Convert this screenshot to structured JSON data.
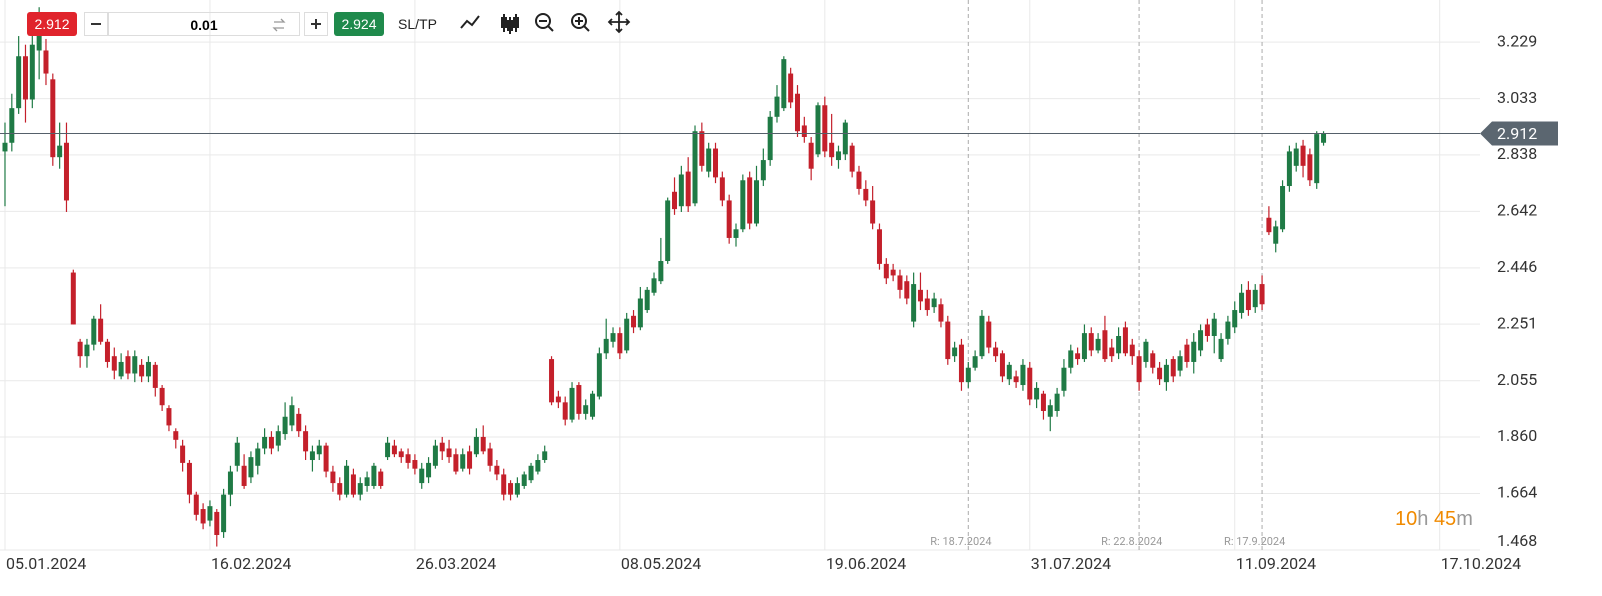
{
  "toolbar": {
    "bid": "2.912",
    "lot": "0.01",
    "ask": "2.924",
    "sl_tp": "SL/TP"
  },
  "countdown": [
    "10",
    "h",
    "45",
    "m"
  ],
  "chart_data": {
    "type": "candlestick",
    "up_color": "#1f7a45",
    "down_color": "#c4202b",
    "grid": true,
    "current_price": 2.912,
    "xlim": [
      -0.73,
      215.9
    ],
    "ylim": [
      1.468,
      3.375
    ],
    "xticks": [
      {
        "value": 0,
        "label": "05.01.2024"
      },
      {
        "value": 30,
        "label": "16.02.2024"
      },
      {
        "value": 60,
        "label": "26.03.2024"
      },
      {
        "value": 90,
        "label": "08.05.2024"
      },
      {
        "value": 120,
        "label": "19.06.2024"
      },
      {
        "value": 150,
        "label": "31.07.2024"
      },
      {
        "value": 180,
        "label": "11.09.2024"
      },
      {
        "value": 210,
        "label": "17.10.2024"
      }
    ],
    "yticks": [
      3.229,
      3.033,
      2.838,
      2.642,
      2.446,
      2.251,
      2.055,
      {
        "value": 1.86,
        "label": "1.860"
      },
      1.664,
      1.468
    ],
    "annotations": [
      {
        "label": "R: 18.7.2024",
        "x": 141
      },
      {
        "label": "R: 22.8.2024",
        "x": 166
      },
      {
        "label": "R: 17.9.2024",
        "x": 184
      }
    ],
    "open": [
      2.85,
      2.88,
      3.0,
      3.18,
      3.03,
      3.2,
      3.2,
      3.1,
      2.83,
      2.88,
      2.43,
      2.19,
      2.14,
      2.18,
      2.27,
      2.19,
      2.14,
      2.07,
      2.14,
      2.08,
      2.11,
      2.07,
      2.11,
      2.03,
      1.96,
      1.88,
      1.83,
      1.77,
      1.66,
      1.61,
      1.57,
      1.6,
      1.53,
      1.66,
      1.76,
      1.76,
      1.72,
      1.76,
      1.82,
      1.86,
      1.83,
      1.87,
      1.9,
      1.94,
      1.88,
      1.78,
      1.8,
      1.83,
      1.74,
      1.7,
      1.66,
      1.73,
      1.66,
      1.69,
      1.69,
      1.74,
      1.79,
      1.83,
      1.81,
      1.8,
      1.78,
      1.7,
      1.72,
      1.76,
      1.84,
      1.82,
      1.8,
      1.75,
      1.81,
      1.8,
      1.86,
      1.82,
      1.76,
      1.73,
      1.7,
      1.66,
      1.69,
      1.71,
      1.74,
      1.78,
      2.13,
      2.0,
      1.98,
      1.92,
      2.04,
      1.94,
      1.93,
      2.0,
      2.15,
      2.19,
      2.22,
      2.16,
      2.28,
      2.24,
      2.3,
      2.36,
      2.4,
      2.47,
      2.71,
      2.66,
      2.78,
      2.67,
      2.92,
      2.78,
      2.86,
      2.76,
      2.68,
      2.55,
      2.58,
      2.76,
      2.6,
      2.75,
      2.82,
      2.97,
      3.0,
      3.12,
      3.05,
      2.94,
      2.88,
      2.84,
      3.01,
      2.88,
      2.82,
      2.84,
      2.87,
      2.78,
      2.72,
      2.68,
      2.58,
      2.46,
      2.44,
      2.42,
      2.4,
      2.26,
      2.37,
      2.34,
      2.31,
      2.32,
      2.26,
      2.14,
      2.18,
      2.05,
      2.1,
      2.14,
      2.26,
      2.17,
      2.15,
      2.06,
      2.07,
      2.04,
      2.1,
      1.99,
      2.01,
      1.93,
      1.95,
      2.02,
      2.1,
      2.15,
      2.13,
      2.22,
      2.16,
      2.23,
      2.17,
      2.15,
      2.24,
      2.18,
      2.14,
      2.12,
      2.15,
      2.1,
      2.05,
      2.13,
      2.09,
      2.18,
      2.12,
      2.16,
      2.25,
      2.21,
      2.13,
      2.2,
      2.24,
      2.29,
      2.37,
      2.31,
      2.39,
      2.62,
      2.53,
      2.58,
      2.73,
      2.8,
      2.87,
      2.84,
      2.74,
      2.88
    ],
    "high": [
      2.95,
      3.05,
      3.25,
      3.22,
      3.3,
      3.35,
      3.24,
      3.12,
      2.95,
      2.95,
      2.44,
      2.2,
      2.2,
      2.28,
      2.32,
      2.2,
      2.17,
      2.15,
      2.16,
      2.16,
      2.13,
      2.14,
      2.12,
      2.04,
      1.97,
      1.89,
      1.85,
      1.78,
      1.67,
      1.63,
      1.64,
      1.61,
      1.68,
      1.76,
      1.86,
      1.8,
      1.81,
      1.84,
      1.89,
      1.88,
      1.9,
      1.98,
      2.0,
      1.96,
      1.9,
      1.83,
      1.85,
      1.84,
      1.76,
      1.72,
      1.78,
      1.75,
      1.72,
      1.74,
      1.77,
      1.75,
      1.86,
      1.85,
      1.82,
      1.82,
      1.8,
      1.77,
      1.79,
      1.85,
      1.86,
      1.85,
      1.82,
      1.82,
      1.83,
      1.89,
      1.9,
      1.84,
      1.78,
      1.75,
      1.71,
      1.72,
      1.74,
      1.77,
      1.8,
      1.83,
      2.14,
      2.02,
      2.0,
      2.05,
      2.05,
      1.99,
      2.02,
      2.17,
      2.27,
      2.24,
      2.24,
      2.29,
      2.3,
      2.38,
      2.38,
      2.43,
      2.55,
      2.69,
      2.76,
      2.8,
      2.83,
      2.94,
      2.95,
      2.88,
      2.88,
      2.78,
      2.7,
      2.6,
      2.77,
      2.78,
      2.8,
      2.86,
      2.99,
      3.08,
      3.18,
      3.14,
      3.08,
      2.97,
      2.9,
      3.02,
      3.04,
      2.98,
      2.87,
      2.96,
      2.88,
      2.8,
      2.75,
      2.73,
      2.6,
      2.48,
      2.46,
      2.44,
      2.42,
      2.43,
      2.43,
      2.37,
      2.36,
      2.34,
      2.28,
      2.19,
      2.2,
      2.12,
      2.16,
      2.3,
      2.28,
      2.19,
      2.16,
      2.12,
      2.09,
      2.13,
      2.12,
      2.05,
      2.02,
      1.99,
      2.03,
      2.13,
      2.18,
      2.17,
      2.25,
      2.24,
      2.22,
      2.28,
      2.2,
      2.24,
      2.26,
      2.2,
      2.16,
      2.2,
      2.16,
      2.12,
      2.13,
      2.14,
      2.16,
      2.2,
      2.22,
      2.25,
      2.27,
      2.29,
      2.22,
      2.28,
      2.33,
      2.39,
      2.4,
      2.39,
      2.42,
      2.66,
      2.61,
      2.75,
      2.87,
      2.88,
      2.89,
      2.86,
      2.92,
      2.92
    ],
    "low": [
      2.66,
      2.85,
      2.98,
      2.95,
      3.0,
      3.1,
      3.08,
      2.8,
      2.79,
      2.64,
      2.25,
      2.1,
      2.1,
      2.16,
      2.18,
      2.1,
      2.06,
      2.06,
      2.06,
      2.05,
      2.05,
      2.05,
      2.0,
      1.95,
      1.88,
      1.82,
      1.74,
      1.63,
      1.57,
      1.54,
      1.55,
      1.48,
      1.51,
      1.62,
      1.74,
      1.68,
      1.7,
      1.73,
      1.8,
      1.8,
      1.81,
      1.85,
      1.88,
      1.86,
      1.78,
      1.74,
      1.78,
      1.72,
      1.67,
      1.64,
      1.65,
      1.65,
      1.64,
      1.67,
      1.68,
      1.68,
      1.78,
      1.79,
      1.77,
      1.75,
      1.73,
      1.68,
      1.7,
      1.75,
      1.78,
      1.77,
      1.73,
      1.74,
      1.73,
      1.79,
      1.8,
      1.74,
      1.71,
      1.64,
      1.64,
      1.65,
      1.68,
      1.7,
      1.73,
      1.77,
      1.97,
      1.96,
      1.9,
      1.91,
      1.92,
      1.92,
      1.92,
      1.99,
      2.13,
      2.17,
      2.13,
      2.15,
      2.22,
      2.23,
      2.29,
      2.35,
      2.39,
      2.46,
      2.63,
      2.64,
      2.64,
      2.66,
      2.78,
      2.76,
      2.74,
      2.66,
      2.53,
      2.52,
      2.57,
      2.58,
      2.59,
      2.73,
      2.8,
      2.95,
      2.99,
      3.0,
      2.9,
      2.88,
      2.75,
      2.83,
      2.83,
      2.8,
      2.79,
      2.82,
      2.76,
      2.7,
      2.66,
      2.58,
      2.44,
      2.39,
      2.4,
      2.34,
      2.32,
      2.24,
      2.3,
      2.28,
      2.29,
      2.24,
      2.11,
      2.12,
      2.02,
      2.03,
      2.09,
      2.13,
      2.15,
      2.12,
      2.05,
      2.04,
      2.03,
      2.02,
      1.97,
      1.96,
      1.92,
      1.88,
      1.93,
      2.0,
      2.08,
      2.11,
      2.12,
      2.14,
      2.15,
      2.12,
      2.12,
      2.13,
      2.14,
      2.11,
      2.02,
      2.1,
      2.08,
      2.04,
      2.02,
      2.05,
      2.07,
      2.1,
      2.08,
      2.14,
      2.19,
      2.15,
      2.12,
      2.18,
      2.22,
      2.27,
      2.28,
      2.29,
      2.3,
      2.56,
      2.5,
      2.57,
      2.71,
      2.78,
      2.76,
      2.73,
      2.72,
      2.87
    ],
    "close": [
      2.88,
      3.0,
      3.18,
      3.03,
      3.22,
      3.28,
      3.12,
      2.83,
      2.87,
      2.68,
      2.25,
      2.14,
      2.18,
      2.27,
      2.19,
      2.12,
      2.09,
      2.12,
      2.08,
      2.14,
      2.07,
      2.12,
      2.03,
      1.97,
      1.9,
      1.85,
      1.77,
      1.66,
      1.59,
      1.56,
      1.62,
      1.52,
      1.66,
      1.74,
      1.84,
      1.69,
      1.79,
      1.82,
      1.86,
      1.82,
      1.88,
      1.93,
      1.97,
      1.88,
      1.81,
      1.81,
      1.83,
      1.74,
      1.7,
      1.66,
      1.76,
      1.66,
      1.7,
      1.72,
      1.76,
      1.69,
      1.84,
      1.8,
      1.79,
      1.77,
      1.75,
      1.75,
      1.77,
      1.83,
      1.81,
      1.79,
      1.74,
      1.8,
      1.75,
      1.86,
      1.81,
      1.76,
      1.73,
      1.66,
      1.66,
      1.7,
      1.73,
      1.76,
      1.78,
      1.81,
      1.98,
      1.98,
      1.92,
      2.03,
      1.94,
      1.97,
      2.01,
      2.15,
      2.2,
      2.22,
      2.15,
      2.27,
      2.24,
      2.34,
      2.37,
      2.41,
      2.47,
      2.68,
      2.65,
      2.77,
      2.66,
      2.92,
      2.8,
      2.86,
      2.76,
      2.68,
      2.55,
      2.58,
      2.75,
      2.6,
      2.75,
      2.82,
      2.97,
      3.04,
      3.17,
      3.02,
      2.92,
      2.9,
      2.79,
      3.01,
      2.85,
      2.83,
      2.85,
      2.95,
      2.78,
      2.72,
      2.68,
      2.6,
      2.46,
      2.41,
      2.42,
      2.37,
      2.34,
      2.39,
      2.33,
      2.3,
      2.34,
      2.26,
      2.13,
      2.17,
      2.05,
      2.1,
      2.14,
      2.28,
      2.17,
      2.14,
      2.07,
      2.11,
      2.05,
      2.11,
      1.99,
      2.03,
      1.95,
      1.97,
      2.01,
      2.1,
      2.16,
      2.13,
      2.22,
      2.16,
      2.2,
      2.13,
      2.14,
      2.21,
      2.15,
      2.14,
      2.05,
      2.19,
      2.1,
      2.06,
      2.11,
      2.07,
      2.14,
      2.12,
      2.19,
      2.23,
      2.21,
      2.27,
      2.2,
      2.26,
      2.3,
      2.36,
      2.3,
      2.37,
      2.32,
      2.57,
      2.59,
      2.73,
      2.85,
      2.86,
      2.8,
      2.75,
      2.91,
      2.912
    ]
  }
}
